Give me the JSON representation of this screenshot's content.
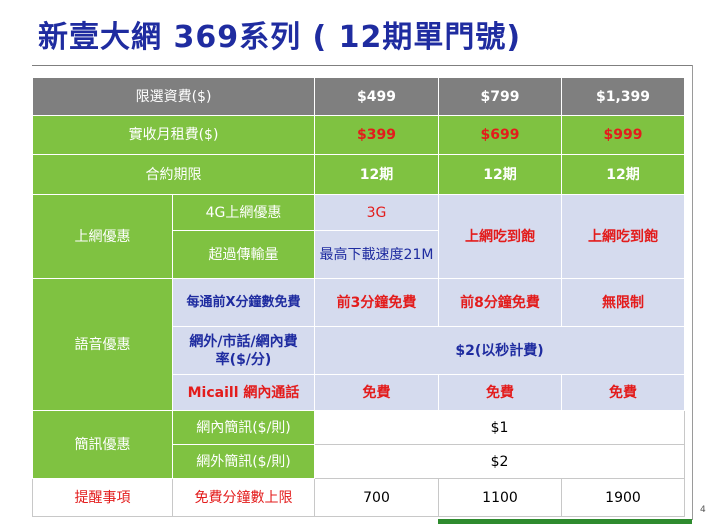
{
  "title": "新壹大網 369系列 ( 12期單門號)",
  "page_number": "4",
  "table": {
    "rows": {
      "fee": {
        "label": "限選資費($)",
        "values": [
          "$499",
          "$799",
          "$1,399"
        ]
      },
      "actual": {
        "label": "實收月租費($)",
        "values": [
          "$399",
          "$699",
          "$999"
        ]
      },
      "contract": {
        "label": "合約期限",
        "values": [
          "12期",
          "12期",
          "12期"
        ]
      },
      "data": {
        "group": "上網優惠",
        "sub1_label": "4G上網優惠",
        "sub1_value": "3G",
        "sub2_label": "超過傳輸量",
        "sub2_value": "最高下載速度21M",
        "unlimited": [
          "上網吃到飽",
          "上網吃到飽"
        ]
      },
      "voice": {
        "group": "語音優惠",
        "free_label": "每通前X分鐘數免費",
        "free_values": [
          "前3分鐘免費",
          "前8分鐘免費",
          "無限制"
        ],
        "rate_label": "網外/市話/網內費率($/分)",
        "rate_value": "$2(以秒計費)",
        "micall_label": "Micaill 網內通話",
        "micall_values": [
          "免費",
          "免費",
          "免費"
        ]
      },
      "sms": {
        "group": "簡訊優惠",
        "on_net_label": "網內簡訊($/則)",
        "on_net_value": "$1",
        "off_net_label": "網外簡訊($/則)",
        "off_net_value": "$2"
      },
      "reminder": {
        "label": "提醒事項",
        "sub_label": "免費分鐘數上限",
        "values": [
          "700",
          "1100",
          "1900"
        ]
      }
    }
  }
}
